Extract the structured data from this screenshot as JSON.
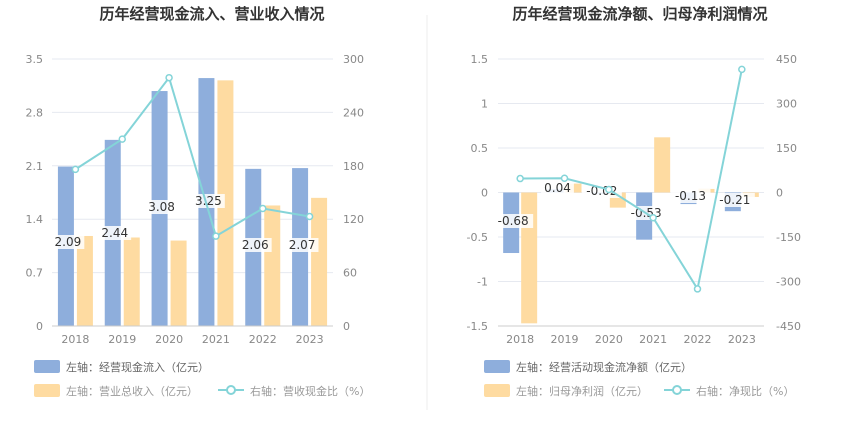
{
  "colors": {
    "bar_left": "#8eaedc",
    "bar_right": "#fedba1",
    "line": "#84d4d8",
    "axis_text": "#888888",
    "title": "#333333",
    "grid": "#e6e9f0",
    "divider": "#eeeeee"
  },
  "chart_data": [
    {
      "type": "bar",
      "title": "历年经营现金流入、营业收入情况",
      "categories": [
        "2018",
        "2019",
        "2020",
        "2021",
        "2022",
        "2023"
      ],
      "left_axis_ticks": [
        "0",
        "0.7",
        "1.4",
        "2.1",
        "2.8",
        "3.5"
      ],
      "right_axis_ticks": [
        "0",
        "60",
        "120",
        "180",
        "240",
        "300"
      ],
      "ylim_left": [
        0,
        3.5
      ],
      "ylim_right": [
        0,
        300
      ],
      "series": [
        {
          "name": "左轴：经营现金流入（亿元）",
          "axis": "left",
          "kind": "bar",
          "values": [
            2.09,
            2.44,
            3.08,
            3.25,
            2.06,
            2.07
          ],
          "labels": [
            "2.09",
            "2.44",
            "3.08",
            "3.25",
            "2.06",
            "2.07"
          ]
        },
        {
          "name": "左轴：营业总收入（亿元）",
          "axis": "left",
          "kind": "bar",
          "values": [
            1.18,
            1.16,
            1.12,
            3.22,
            1.58,
            1.68
          ]
        },
        {
          "name": "右轴：营收现金比（%）",
          "axis": "right",
          "kind": "line",
          "values": [
            176,
            210,
            279,
            101,
            132,
            123
          ]
        }
      ]
    },
    {
      "type": "bar",
      "title": "历年经营现金流净额、归母净利润情况",
      "categories": [
        "2018",
        "2019",
        "2020",
        "2021",
        "2022",
        "2023"
      ],
      "left_axis_ticks": [
        "-1.5",
        "-1",
        "-0.5",
        "0",
        "0.5",
        "1",
        "1.5"
      ],
      "right_axis_ticks": [
        "-450",
        "-300",
        "-150",
        "0",
        "150",
        "300",
        "450"
      ],
      "ylim_left": [
        -1.5,
        1.5
      ],
      "ylim_right": [
        -450,
        450
      ],
      "series": [
        {
          "name": "左轴：经营活动现金流净额（亿元）",
          "axis": "left",
          "kind": "bar",
          "values": [
            -0.68,
            0.04,
            -0.02,
            -0.53,
            -0.13,
            -0.21
          ],
          "labels": [
            "-0.68",
            "0.04",
            "-0.02",
            "-0.53",
            "-0.13",
            "-0.21"
          ]
        },
        {
          "name": "左轴：归母净利润（亿元）",
          "axis": "left",
          "kind": "bar",
          "values": [
            -1.47,
            0.1,
            -0.17,
            0.62,
            0.04,
            -0.05
          ]
        },
        {
          "name": "右轴：净现比（%）",
          "axis": "right",
          "kind": "line",
          "values": [
            47,
            48,
            10,
            -85,
            -325,
            415
          ]
        }
      ]
    }
  ]
}
